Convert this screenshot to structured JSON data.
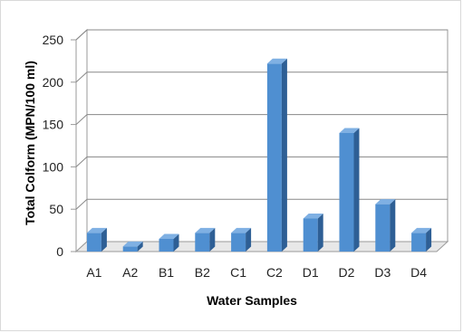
{
  "chart_data": {
    "type": "bar",
    "title": "",
    "xlabel": "Water Samples",
    "ylabel": "Total Colform (MPN/100 ml)",
    "categories": [
      "A1",
      "A2",
      "B1",
      "B2",
      "C1",
      "C2",
      "D1",
      "D2",
      "D3",
      "D4"
    ],
    "values": [
      22,
      6,
      15,
      22,
      22,
      222,
      39,
      140,
      56,
      22
    ],
    "ylim": [
      0,
      250
    ],
    "yticks": [
      0,
      50,
      100,
      150,
      200,
      250
    ],
    "grid": true,
    "style": "3d-column",
    "colors": {
      "bar_front": "#4f8fd1",
      "bar_side": "#2e5f95",
      "bar_top": "#7fb0e3",
      "grid": "#888888",
      "wall": "#e8e8e8"
    }
  }
}
